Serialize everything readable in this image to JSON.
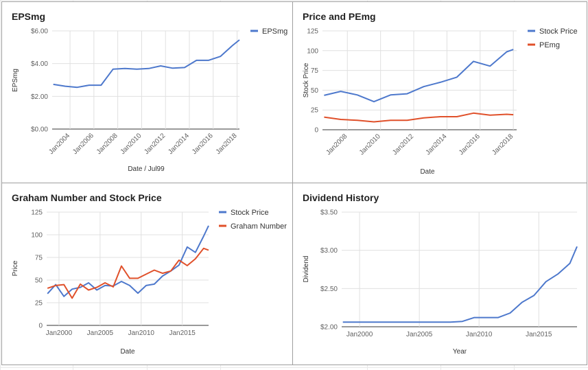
{
  "chart_data": [
    {
      "type": "line",
      "title": "EPSmg",
      "xlabel": "Date / Jul99",
      "ylabel": "EPSmg",
      "ylim": [
        0,
        6
      ],
      "ytick_labels": [
        "$0.00",
        "$2.00",
        "$4.00",
        "$6.00"
      ],
      "ytick_values": [
        0,
        2,
        4,
        6
      ],
      "x_range": [
        2002.5,
        2018.2
      ],
      "xtick_labels": [
        "Jan2004",
        "Jan2006",
        "Jan2008",
        "Jan2010",
        "Jan2012",
        "Jan2014",
        "Jan2016",
        "Jan2018"
      ],
      "xtick_values": [
        2004,
        2006,
        2008,
        2010,
        2012,
        2014,
        2016,
        2018
      ],
      "legend": "top-right",
      "grid": true,
      "series": [
        {
          "name": "EPSmg",
          "color": "#4d78cc",
          "x": [
            2002.6,
            2003.6,
            2004.6,
            2005.6,
            2006.6,
            2007.6,
            2008.6,
            2009.6,
            2010.6,
            2011.6,
            2012.6,
            2013.6,
            2014.6,
            2015.6,
            2016.6,
            2017.6,
            2018.2
          ],
          "y": [
            2.73,
            2.62,
            2.55,
            2.68,
            2.68,
            3.66,
            3.7,
            3.66,
            3.7,
            3.86,
            3.72,
            3.76,
            4.2,
            4.2,
            4.44,
            5.1,
            5.45
          ]
        }
      ]
    },
    {
      "type": "line",
      "title": "Price and PEmg",
      "xlabel": "Date",
      "ylabel": "Stock Price",
      "ylim": [
        0,
        125
      ],
      "ytick_labels": [
        "0",
        "25",
        "50",
        "75",
        "100",
        "125"
      ],
      "ytick_values": [
        0,
        25,
        50,
        75,
        100,
        125
      ],
      "x_range": [
        2006.5,
        2018.2
      ],
      "xtick_labels": [
        "Jan2008",
        "Jan2010",
        "Jan2012",
        "Jan2014",
        "Jan2016",
        "Jan2018"
      ],
      "xtick_values": [
        2008,
        2010,
        2012,
        2014,
        2016,
        2018
      ],
      "legend": "top-right",
      "grid": true,
      "series": [
        {
          "name": "Stock Price",
          "color": "#4d78cc",
          "x": [
            2006.6,
            2007.6,
            2008.6,
            2009.6,
            2010.6,
            2011.6,
            2012.6,
            2013.6,
            2014.6,
            2015.6,
            2016.6,
            2017.6,
            2018.0
          ],
          "y": [
            43.5,
            48.5,
            44.0,
            35.5,
            44.0,
            45.5,
            54.5,
            60.0,
            66.5,
            86.5,
            80.5,
            98.5,
            101.5
          ]
        },
        {
          "name": "PEmg",
          "color": "#e0502a",
          "x": [
            2006.6,
            2007.6,
            2008.6,
            2009.6,
            2010.6,
            2011.6,
            2012.6,
            2013.6,
            2014.6,
            2015.6,
            2016.6,
            2017.6,
            2018.0
          ],
          "y": [
            16.0,
            13.0,
            12.0,
            10.0,
            12.0,
            12.0,
            15.0,
            16.5,
            16.5,
            21.0,
            18.5,
            19.5,
            19.0
          ]
        }
      ]
    },
    {
      "type": "line",
      "title": "Graham Number and Stock Price",
      "xlabel": "Date",
      "ylabel": "Price",
      "ylim": [
        0,
        125
      ],
      "ytick_labels": [
        "0",
        "25",
        "50",
        "75",
        "100",
        "125"
      ],
      "ytick_values": [
        0,
        25,
        50,
        75,
        100,
        125
      ],
      "x_range": [
        1998.5,
        2018.2
      ],
      "xtick_labels": [
        "Jan2000",
        "Jan2005",
        "Jan2010",
        "Jan2015"
      ],
      "xtick_values": [
        2000,
        2005,
        2010,
        2015
      ],
      "legend": "top-right",
      "grid": true,
      "series": [
        {
          "name": "Stock Price",
          "color": "#4d78cc",
          "x": [
            1998.6,
            1999.6,
            2000.6,
            2001.6,
            2002.6,
            2003.6,
            2004.6,
            2005.6,
            2006.6,
            2007.6,
            2008.6,
            2009.6,
            2010.6,
            2011.6,
            2012.6,
            2013.6,
            2014.6,
            2015.6,
            2016.6,
            2017.6,
            2018.2
          ],
          "y": [
            35.0,
            45.0,
            32.0,
            40.0,
            42.0,
            47.0,
            39.0,
            44.0,
            43.5,
            48.5,
            44.0,
            35.5,
            44.0,
            45.5,
            54.5,
            60.0,
            66.5,
            86.5,
            80.5,
            98.5,
            110.0
          ]
        },
        {
          "name": "Graham Number",
          "color": "#e0502a",
          "x": [
            1998.6,
            1999.6,
            2000.6,
            2001.6,
            2002.6,
            2003.6,
            2004.6,
            2005.6,
            2006.6,
            2007.6,
            2008.6,
            2009.6,
            2010.6,
            2011.6,
            2012.6,
            2013.6,
            2014.6,
            2015.6,
            2016.6,
            2017.6,
            2018.2
          ],
          "y": [
            41.0,
            44.0,
            45.0,
            30.0,
            45.5,
            39.0,
            42.0,
            47.0,
            42.5,
            65.5,
            52.0,
            52.0,
            56.5,
            61.0,
            57.5,
            60.0,
            72.0,
            66.0,
            73.5,
            85.0,
            83.0
          ]
        }
      ]
    },
    {
      "type": "line",
      "title": "Dividend History",
      "xlabel": "Year",
      "ylabel": "Dividend",
      "ylim": [
        2.0,
        3.5
      ],
      "ytick_labels": [
        "$2.00",
        "$2.50",
        "$3.00",
        "$3.50"
      ],
      "ytick_values": [
        2.0,
        2.5,
        3.0,
        3.5
      ],
      "x_range": [
        1998.5,
        2018.2
      ],
      "xtick_labels": [
        "Jan2000",
        "Jan2005",
        "Jan2010",
        "Jan2015"
      ],
      "xtick_values": [
        2000,
        2005,
        2010,
        2015
      ],
      "grid": true,
      "series": [
        {
          "name": "",
          "color": "#4d78cc",
          "x": [
            1998.6,
            1999.6,
            2000.6,
            2001.6,
            2002.6,
            2003.6,
            2004.6,
            2005.6,
            2006.6,
            2007.6,
            2008.6,
            2009.6,
            2010.6,
            2011.6,
            2012.6,
            2013.6,
            2014.6,
            2015.6,
            2016.6,
            2017.6,
            2018.2
          ],
          "y": [
            2.06,
            2.06,
            2.06,
            2.06,
            2.06,
            2.06,
            2.06,
            2.06,
            2.06,
            2.06,
            2.07,
            2.12,
            2.12,
            2.12,
            2.18,
            2.32,
            2.41,
            2.59,
            2.69,
            2.83,
            3.05
          ]
        }
      ]
    }
  ]
}
